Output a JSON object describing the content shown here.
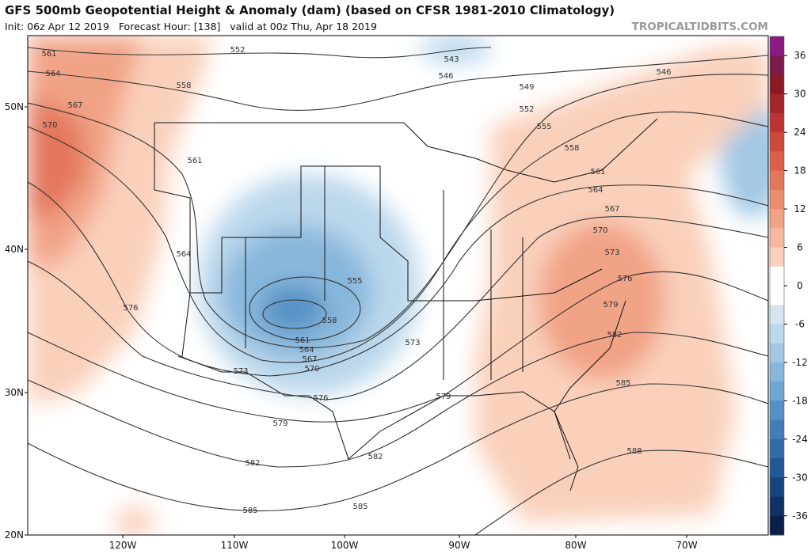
{
  "header": {
    "title": "GFS 500mb Geopotential Height & Anomaly (dam) (based on CFSR 1981-2010 Climatology)",
    "subtitle": "Init: 06z Apr 12 2019   Forecast Hour: [138]   valid at 00z Thu, Apr 18 2019",
    "site": "TROPICALTIDBITS.COM"
  },
  "map": {
    "lat_labels": [
      "50N",
      "40N",
      "30N",
      "20N"
    ],
    "lon_labels": [
      "120W",
      "110W",
      "100W",
      "90W",
      "80W",
      "70W"
    ],
    "contour_labels": [
      "561",
      "564",
      "567",
      "570",
      "552",
      "558",
      "543",
      "546",
      "549",
      "546",
      "552",
      "555",
      "558",
      "561",
      "564",
      "567",
      "570",
      "573",
      "576",
      "579",
      "582",
      "585",
      "588",
      "561",
      "564",
      "576",
      "555",
      "558",
      "561",
      "564",
      "567",
      "570",
      "573",
      "573",
      "576",
      "579",
      "579",
      "582",
      "582",
      "585",
      "585"
    ]
  },
  "colorbar": {
    "range": [
      -39,
      39
    ],
    "ticks": [
      36,
      30,
      24,
      18,
      12,
      6,
      0,
      -6,
      -12,
      -18,
      -24,
      -30,
      -36
    ],
    "colors": [
      "#8a1a82",
      "#7d1a4c",
      "#8c1a26",
      "#a3242a",
      "#bb3433",
      "#cc4a3c",
      "#d9604a",
      "#e3775b",
      "#eb8d6f",
      "#f1a386",
      "#f6b99e",
      "#fad0bb",
      "#ffffff",
      "#ffffff",
      "#d5e6f2",
      "#bcd8ec",
      "#a2c8e4",
      "#88b7dc",
      "#6ea5d2",
      "#5591c6",
      "#417eb8",
      "#306ba8",
      "#225795",
      "#17447d",
      "#0f3264",
      "#0b1f4c"
    ]
  }
}
